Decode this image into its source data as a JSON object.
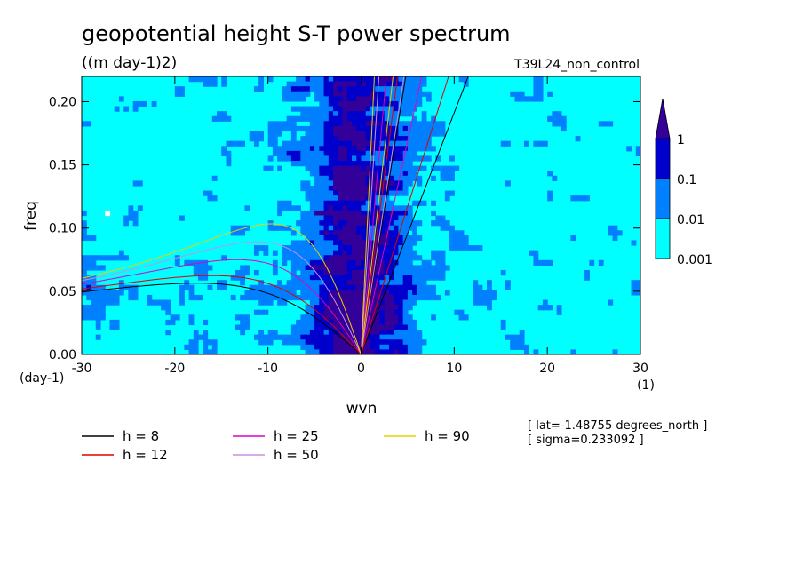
{
  "chart_data": {
    "type": "heatmap",
    "title": "geopotential height S-T power spectrum",
    "subtitle": "((m day-1)2)",
    "run_label": "T39L24_non_control",
    "xlabel": "wvn",
    "ylabel": "freq",
    "x_unit": "(1)",
    "y_unit": "(day-1)",
    "xlim": [
      -30,
      30
    ],
    "ylim": [
      0,
      0.22
    ],
    "x_ticks": [
      "-30",
      "-20",
      "-10",
      "0",
      "10",
      "20",
      "30"
    ],
    "y_ticks": [
      "0.00",
      "0.05",
      "0.10",
      "0.15",
      "0.20"
    ],
    "colorbar": {
      "levels": [
        "0.001",
        "0.01",
        "0.1",
        "1"
      ],
      "colors": [
        "#00ffff",
        "#0080ff",
        "#0000cc",
        "#330099"
      ],
      "extend": "max"
    },
    "dispersion_curves": [
      {
        "label": "h =  8",
        "h": 8,
        "color": "#000000"
      },
      {
        "label": "h = 12",
        "h": 12,
        "color": "#e00000"
      },
      {
        "label": "h = 25",
        "h": 25,
        "color": "#e000c0"
      },
      {
        "label": "h = 50",
        "h": 50,
        "color": "#c890e0"
      },
      {
        "label": "h = 90",
        "h": 90,
        "color": "#e8d000"
      }
    ],
    "annotations": [
      "[ lat=-1.48755 degrees_north ]",
      "[ sigma=0.233092 ]"
    ]
  }
}
